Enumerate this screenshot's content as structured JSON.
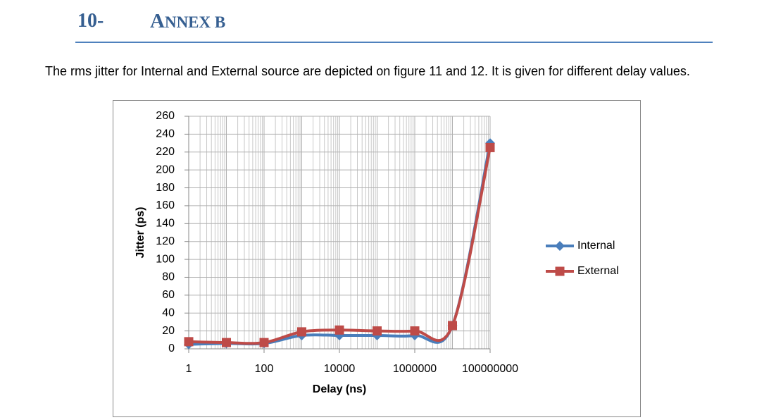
{
  "header": {
    "number": "10-",
    "title": "ANNEX B"
  },
  "paragraph": "The rms jitter for Internal and External source are depicted on figure 11 and 12. It is given for different delay values.",
  "chart_data": {
    "type": "line",
    "smooth": true,
    "log_x": true,
    "grid": true,
    "x_label": "Delay (ns)",
    "y_label": "Jitter (ps)",
    "x": [
      1,
      10,
      100,
      1000,
      10000,
      100000,
      1000000,
      10000000,
      100000000
    ],
    "series": [
      {
        "name": "Internal",
        "color": "#4a7ebb",
        "marker": "diamond",
        "values": [
          5,
          6,
          6,
          15,
          15,
          15,
          15,
          26,
          230
        ]
      },
      {
        "name": "External",
        "color": "#be4b48",
        "marker": "square",
        "values": [
          8,
          7,
          7,
          19,
          21,
          20,
          20,
          26,
          225
        ]
      }
    ],
    "xlim": [
      1,
      100000000
    ],
    "xticks": [
      1,
      100,
      10000,
      1000000,
      100000000
    ],
    "ylim": [
      0,
      260
    ],
    "yticks": [
      0,
      20,
      40,
      60,
      80,
      100,
      120,
      140,
      160,
      180,
      200,
      220,
      240,
      260
    ],
    "legend": "right"
  }
}
